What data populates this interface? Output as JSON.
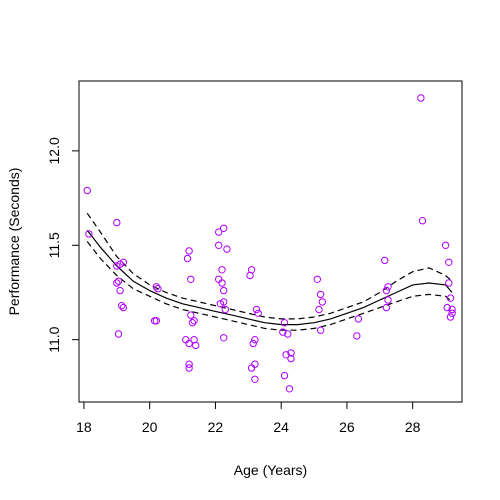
{
  "chart_data": {
    "type": "scatter",
    "title": "",
    "xlabel": "Age (Years)",
    "ylabel": "Performance (Seconds)",
    "xlim": [
      17.85,
      29.5
    ],
    "ylim": [
      10.67,
      12.37
    ],
    "xticks": [
      18,
      20,
      22,
      24,
      26,
      28
    ],
    "yticks": [
      11.0,
      11.5,
      12.0
    ],
    "xtick_labels": [
      "18",
      "20",
      "22",
      "24",
      "26",
      "28"
    ],
    "ytick_labels": [
      "11.0",
      "11.5",
      "12.0"
    ],
    "grid": false,
    "box": true,
    "point_color": "#b000ff",
    "points": [
      [
        18.1,
        11.79
      ],
      [
        18.15,
        11.56
      ],
      [
        19.0,
        11.62
      ],
      [
        19.0,
        11.39
      ],
      [
        19.1,
        11.4
      ],
      [
        19.0,
        11.3
      ],
      [
        19.05,
        11.31
      ],
      [
        19.2,
        11.41
      ],
      [
        19.1,
        11.26
      ],
      [
        19.15,
        11.18
      ],
      [
        19.2,
        11.17
      ],
      [
        19.05,
        11.03
      ],
      [
        20.2,
        11.28
      ],
      [
        20.25,
        11.27
      ],
      [
        20.15,
        11.1
      ],
      [
        20.2,
        11.1
      ],
      [
        21.2,
        11.47
      ],
      [
        21.15,
        11.43
      ],
      [
        21.25,
        11.32
      ],
      [
        21.1,
        11.0
      ],
      [
        21.25,
        11.13
      ],
      [
        21.3,
        11.09
      ],
      [
        21.35,
        11.1
      ],
      [
        21.2,
        10.98
      ],
      [
        21.35,
        11.0
      ],
      [
        21.4,
        10.97
      ],
      [
        21.2,
        10.87
      ],
      [
        21.2,
        10.85
      ],
      [
        22.1,
        11.57
      ],
      [
        22.25,
        11.59
      ],
      [
        22.35,
        11.48
      ],
      [
        22.1,
        11.5
      ],
      [
        22.2,
        11.37
      ],
      [
        22.2,
        11.3
      ],
      [
        22.1,
        11.32
      ],
      [
        22.25,
        11.26
      ],
      [
        22.15,
        11.19
      ],
      [
        22.25,
        11.2
      ],
      [
        22.3,
        11.16
      ],
      [
        22.25,
        11.01
      ],
      [
        23.1,
        11.37
      ],
      [
        23.05,
        11.34
      ],
      [
        23.25,
        11.16
      ],
      [
        23.3,
        11.14
      ],
      [
        23.2,
        11.0
      ],
      [
        23.15,
        10.98
      ],
      [
        23.1,
        10.85
      ],
      [
        23.2,
        10.87
      ],
      [
        23.2,
        10.79
      ],
      [
        24.1,
        11.09
      ],
      [
        24.2,
        11.03
      ],
      [
        24.05,
        11.04
      ],
      [
        24.15,
        10.92
      ],
      [
        24.3,
        10.93
      ],
      [
        24.3,
        10.9
      ],
      [
        24.1,
        10.81
      ],
      [
        24.25,
        10.74
      ],
      [
        25.1,
        11.32
      ],
      [
        25.2,
        11.24
      ],
      [
        25.25,
        11.2
      ],
      [
        25.15,
        11.16
      ],
      [
        25.2,
        11.05
      ],
      [
        26.35,
        11.11
      ],
      [
        26.3,
        11.02
      ],
      [
        27.15,
        11.42
      ],
      [
        27.25,
        11.28
      ],
      [
        27.2,
        11.26
      ],
      [
        27.25,
        11.21
      ],
      [
        27.2,
        11.17
      ],
      [
        28.25,
        12.28
      ],
      [
        28.3,
        11.63
      ],
      [
        29.0,
        11.5
      ],
      [
        29.1,
        11.41
      ],
      [
        29.1,
        11.3
      ],
      [
        29.15,
        11.22
      ],
      [
        29.05,
        11.17
      ],
      [
        29.2,
        11.16
      ],
      [
        29.2,
        11.14
      ],
      [
        29.15,
        11.12
      ]
    ],
    "series": [
      {
        "style": "solid",
        "x": [
          18.1,
          18.5,
          19,
          19.5,
          20,
          20.5,
          21,
          21.5,
          22,
          22.5,
          23,
          23.5,
          24,
          24.5,
          25,
          25.5,
          26,
          26.5,
          27,
          27.5,
          28,
          28.5,
          29,
          29.2
        ],
        "y": [
          11.58,
          11.49,
          11.39,
          11.31,
          11.26,
          11.22,
          11.19,
          11.17,
          11.15,
          11.13,
          11.11,
          11.09,
          11.08,
          11.08,
          11.09,
          11.11,
          11.14,
          11.17,
          11.21,
          11.25,
          11.29,
          11.3,
          11.29,
          11.25
        ]
      },
      {
        "style": "dashed",
        "x": [
          18.1,
          18.5,
          19,
          19.5,
          20,
          20.5,
          21,
          21.5,
          22,
          22.5,
          23,
          23.5,
          24,
          24.5,
          25,
          25.5,
          26,
          26.5,
          27,
          27.5,
          28,
          28.5,
          29,
          29.2
        ],
        "y": [
          11.67,
          11.57,
          11.44,
          11.35,
          11.29,
          11.25,
          11.22,
          11.2,
          11.18,
          11.16,
          11.14,
          11.12,
          11.11,
          11.11,
          11.12,
          11.14,
          11.17,
          11.2,
          11.25,
          11.31,
          11.36,
          11.38,
          11.34,
          11.31
        ]
      },
      {
        "style": "dashed",
        "x": [
          18.1,
          18.5,
          19,
          19.5,
          20,
          20.5,
          21,
          21.5,
          22,
          22.5,
          23,
          23.5,
          24,
          24.5,
          25,
          25.5,
          26,
          26.5,
          27,
          27.5,
          28,
          28.5,
          29,
          29.2
        ],
        "y": [
          11.52,
          11.43,
          11.34,
          11.27,
          11.23,
          11.19,
          11.16,
          11.14,
          11.12,
          11.1,
          11.08,
          11.06,
          11.05,
          11.05,
          11.06,
          11.08,
          11.11,
          11.14,
          11.17,
          11.2,
          11.23,
          11.24,
          11.23,
          11.2
        ]
      }
    ]
  }
}
